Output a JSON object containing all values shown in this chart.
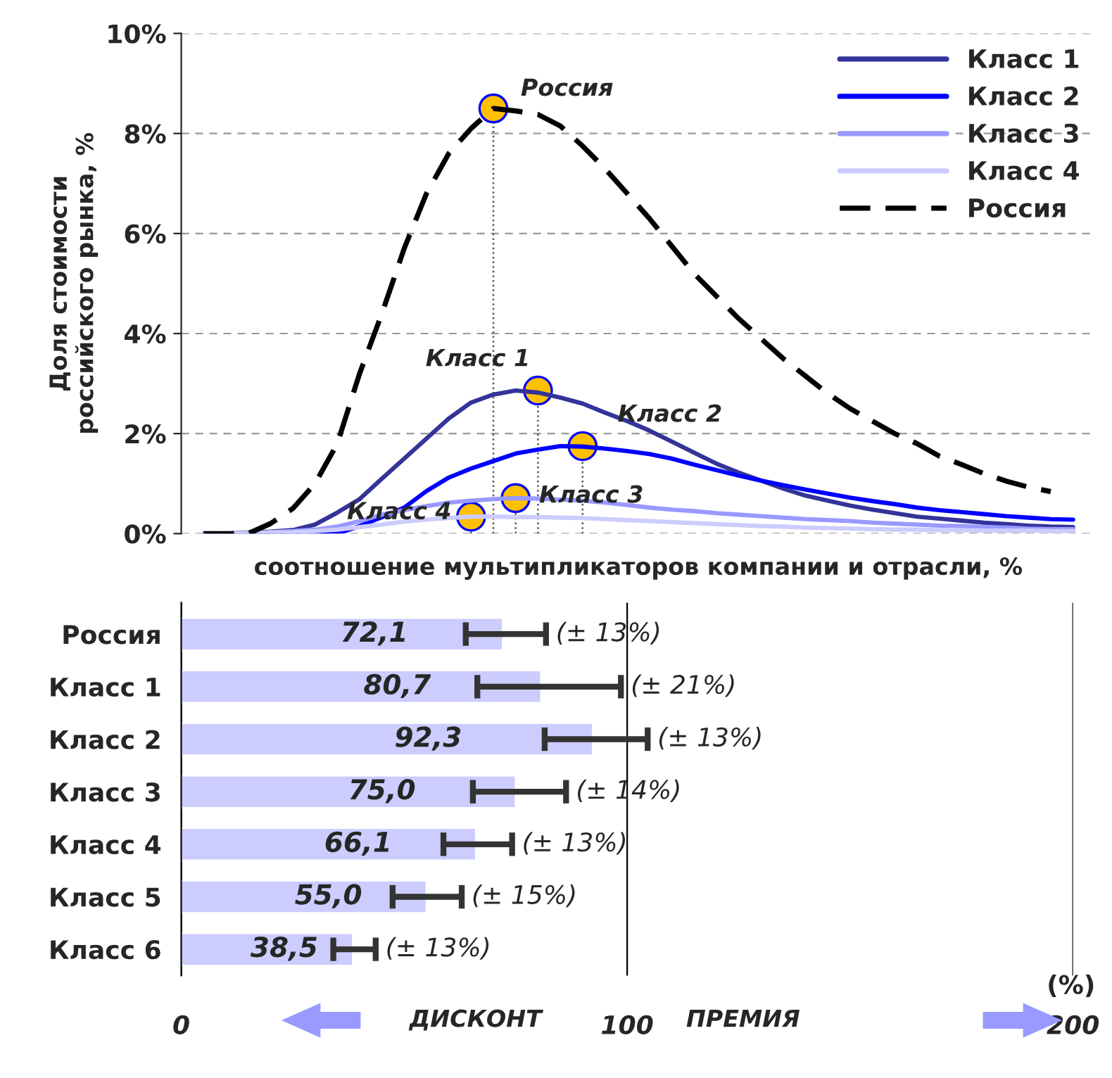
{
  "chart_data": [
    {
      "type": "line",
      "xlabel": "соотношение мультипликаторов компании и отрасли, %",
      "ylabel": "Доля стоимости\nроссийского рынка, %",
      "ylim": [
        0,
        10
      ],
      "categories": [
        null,
        null,
        null,
        null,
        null,
        null,
        null,
        null,
        null,
        null,
        null,
        null,
        null,
        null,
        null,
        null,
        null,
        null,
        null,
        null,
        null,
        null,
        null,
        null,
        null,
        null,
        null,
        null,
        null,
        null,
        null,
        null,
        null,
        null,
        null,
        null,
        null,
        null,
        null,
        null,
        null
      ],
      "yticks": [
        {
          "value": 0,
          "label": "0%"
        },
        {
          "value": 2,
          "label": "2%"
        },
        {
          "value": 4,
          "label": "4%"
        },
        {
          "value": 6,
          "label": "6%"
        },
        {
          "value": 8,
          "label": "8%"
        },
        {
          "value": 10,
          "label": "10%"
        }
      ],
      "tick_labels": "y",
      "grid": "y",
      "legend": "top right",
      "series": [
        {
          "name": "Класс 1",
          "color": "#333399",
          "line_style": "solid",
          "values": [
            null,
            0,
            0,
            0.02,
            0.04,
            0.07,
            0.18,
            0.42,
            0.69,
            1.1,
            1.5,
            1.9,
            2.3,
            2.62,
            2.78,
            2.86,
            2.82,
            2.72,
            2.6,
            2.42,
            2.25,
            2.06,
            1.84,
            1.62,
            1.4,
            1.22,
            1.06,
            0.9,
            0.76,
            0.66,
            0.56,
            0.48,
            0.41,
            0.34,
            0.3,
            0.26,
            0.22,
            0.19,
            0.16,
            0.14,
            0.13
          ]
        },
        {
          "name": "Класс 2",
          "color": "#0000ff",
          "line_style": "solid",
          "values": [
            null,
            null,
            null,
            0,
            0,
            0,
            0,
            0,
            0.15,
            0.33,
            0.52,
            0.85,
            1.12,
            1.3,
            1.45,
            1.6,
            1.68,
            1.75,
            1.74,
            1.7,
            1.65,
            1.59,
            1.5,
            1.38,
            1.27,
            1.16,
            1.06,
            0.97,
            0.88,
            0.8,
            0.72,
            0.65,
            0.59,
            0.52,
            0.47,
            0.43,
            0.39,
            0.35,
            0.32,
            0.29,
            0.28
          ]
        },
        {
          "name": "Класс 3",
          "color": "#9999ff",
          "line_style": "solid",
          "values": [
            null,
            0,
            0,
            0.01,
            0.03,
            0.05,
            0.08,
            0.14,
            0.25,
            0.38,
            0.47,
            0.55,
            0.62,
            0.66,
            0.69,
            0.71,
            0.7,
            0.68,
            0.66,
            0.62,
            0.57,
            0.52,
            0.48,
            0.45,
            0.41,
            0.38,
            0.35,
            0.32,
            0.29,
            0.27,
            0.25,
            0.22,
            0.2,
            0.18,
            0.16,
            0.15,
            0.13,
            0.12,
            0.1,
            0.09,
            0.09
          ]
        },
        {
          "name": "Класс 4",
          "color": "#ccccff",
          "line_style": "solid",
          "values": [
            null,
            0,
            0,
            0.01,
            0.02,
            0.03,
            0.05,
            0.08,
            0.13,
            0.18,
            0.24,
            0.28,
            0.31,
            0.34,
            0.34,
            0.33,
            0.33,
            0.32,
            0.31,
            0.29,
            0.27,
            0.25,
            0.23,
            0.21,
            0.19,
            0.17,
            0.15,
            0.14,
            0.12,
            0.11,
            0.1,
            0.09,
            0.08,
            0.08,
            0.07,
            0.07,
            0.06,
            0.06,
            0.06,
            0.05,
            0.05
          ]
        },
        {
          "name": "Россия",
          "color": "#000000",
          "line_style": "dashed",
          "values": [
            null,
            0,
            0,
            0,
            0.2,
            0.5,
            1.0,
            1.8,
            3.2,
            4.4,
            5.7,
            6.8,
            7.6,
            8.1,
            8.5,
            8.45,
            8.38,
            8.15,
            7.75,
            7.3,
            6.8,
            6.3,
            5.75,
            5.2,
            4.75,
            4.3,
            3.9,
            3.5,
            3.15,
            2.8,
            2.5,
            2.25,
            2.0,
            1.8,
            1.55,
            1.38,
            1.2,
            1.05,
            0.93,
            0.84,
            null
          ]
        },
        {
          "type": "lollipop",
          "color": "#ffc000",
          "line_style": "dotted",
          "marker": "circle",
          "values": [
            null,
            null,
            null,
            null,
            null,
            null,
            null,
            null,
            null,
            null,
            null,
            null,
            null,
            0.34,
            8.5,
            0.71,
            2.86,
            null,
            1.75,
            null,
            null,
            null,
            null,
            null,
            null,
            null,
            null,
            null,
            null,
            null,
            null,
            null,
            null,
            null,
            null,
            null,
            null,
            null,
            null,
            null,
            null
          ]
        }
      ],
      "annotations": [
        "Класс 4",
        "Россия",
        "Класс 3",
        "Класс 1",
        "Класс 2"
      ]
    },
    {
      "type": "bar",
      "orientation": "horizontal",
      "categories": [
        "Россия",
        "Класс 1",
        "Класс 2",
        "Класс 3",
        "Класс 4",
        "Класс 5",
        "Класс 6"
      ],
      "values": [
        72.1,
        80.7,
        92.3,
        75.0,
        66.1,
        55.0,
        38.5
      ],
      "colors": [
        "#ccccff",
        "#ccccff",
        "#ccccff",
        "#ccccff",
        "#ccccff",
        "#ccccff",
        "#ccccff"
      ],
      "errors": [
        [
          63.8,
          81.8
        ],
        [
          66.4,
          98.6
        ],
        [
          81.5,
          104.6
        ],
        [
          65.4,
          86.3
        ],
        [
          58.8,
          74.2
        ],
        [
          47.4,
          62.9
        ],
        [
          34.1,
          43.6
        ]
      ],
      "value_labels": [
        "72,1",
        "80,7",
        "92,3",
        "75,0",
        "66,1",
        "55,0",
        "38,5"
      ],
      "xlim": [
        0,
        200
      ],
      "xticks": [
        0,
        100,
        200
      ],
      "grid": "x",
      "annotations": [
        "ДИСКОНТ",
        "ПРЕМИЯ",
        "(%)",
        {
          "text": "(± 13%)",
          "x": 81.8,
          "y": "Россия"
        },
        {
          "text": "(± 21%)",
          "x": 98.6,
          "y": "Класс 1"
        },
        {
          "text": "(± 13%)",
          "x": 104.6,
          "y": "Класс 2"
        },
        {
          "text": "(± 14%)",
          "x": 86.3,
          "y": "Класс 3"
        },
        {
          "text": "(± 13%)",
          "x": 74.2,
          "y": "Класс 4"
        },
        {
          "text": "(± 15%)",
          "x": 62.9,
          "y": "Класс 5"
        },
        {
          "text": "(± 13%)",
          "x": 43.6,
          "y": "Класс 6"
        }
      ]
    }
  ]
}
